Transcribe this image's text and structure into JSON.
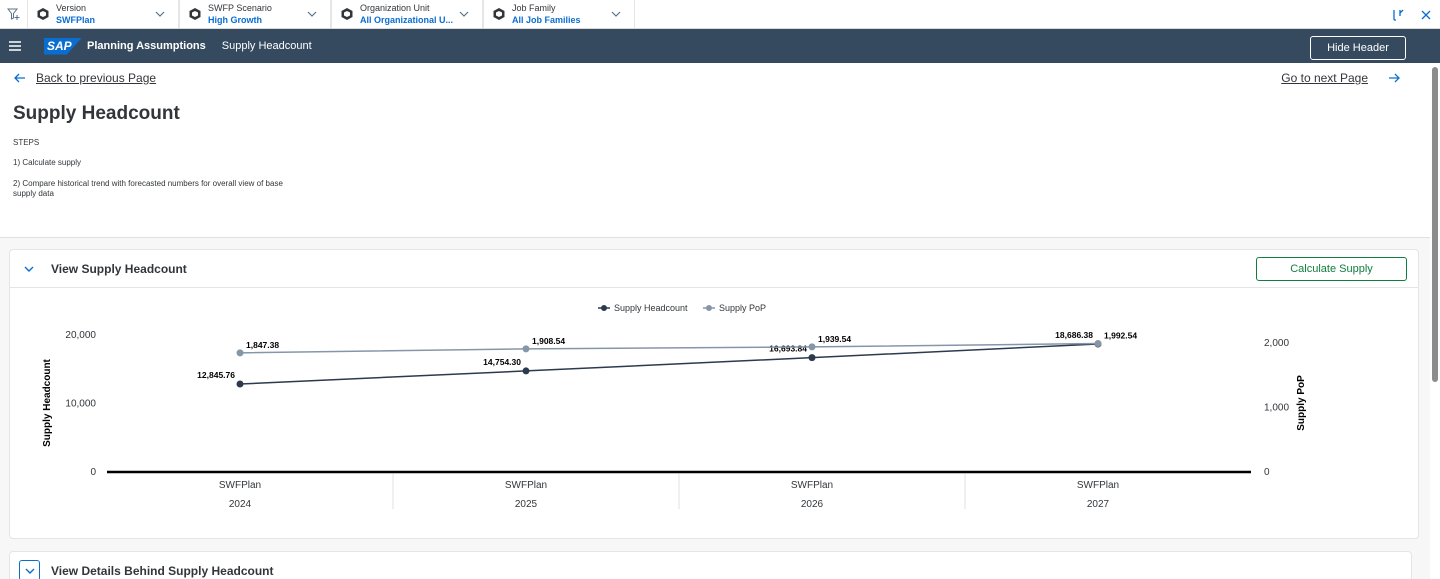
{
  "filters": [
    {
      "label": "Version",
      "value": "SWFPlan"
    },
    {
      "label": "SWFP Scenario",
      "value": "High Growth"
    },
    {
      "label": "Organization Unit",
      "value": "All Organizational U..."
    },
    {
      "label": "Job Family",
      "value": "All Job Families"
    }
  ],
  "shell": {
    "logo": "SAP",
    "app_title": "Planning Assumptions",
    "subtitle": "Supply Headcount",
    "hide_header_label": "Hide Header"
  },
  "nav": {
    "back_label": "Back to previous Page",
    "next_label": "Go to next Page"
  },
  "page": {
    "title": "Supply Headcount",
    "steps_heading": "STEPS",
    "step1": "1) Calculate supply",
    "step2": "2) Compare historical trend with forecasted numbers for overall view of base supply data"
  },
  "panel": {
    "title": "View Supply Headcount",
    "calc_button_label": "Calculate Supply"
  },
  "panel2": {
    "title": "View Details Behind Supply Headcount"
  },
  "chart_data": {
    "type": "line",
    "categories": [
      {
        "version": "SWFPlan",
        "year": "2024"
      },
      {
        "version": "SWFPlan",
        "year": "2025"
      },
      {
        "version": "SWFPlan",
        "year": "2026"
      },
      {
        "version": "SWFPlan",
        "year": "2027"
      }
    ],
    "series": [
      {
        "name": "Supply Headcount",
        "axis": "left",
        "color": "#2b3b4d",
        "values": [
          12845.76,
          14754.3,
          16693.84,
          18686.38
        ],
        "labels": [
          "12,845.76",
          "14,754.30",
          "16,693.84",
          "18,686.38"
        ]
      },
      {
        "name": "Supply PoP",
        "axis": "right",
        "color": "#8696a9",
        "values": [
          1847.38,
          1908.54,
          1939.54,
          1992.54
        ],
        "labels": [
          "1,847.38",
          "1,908.54",
          "1,939.54",
          "1,992.54"
        ]
      }
    ],
    "ylabel_left": "Supply Headcount",
    "ylabel_right": "Supply PoP",
    "yticks_left": [
      "0",
      "10,000",
      "20,000"
    ],
    "yticks_right": [
      "0",
      "1,000",
      "2,000"
    ],
    "ylim_left": [
      0,
      20000
    ],
    "ylim_right": [
      0,
      2000
    ],
    "legend_position": "top-center"
  },
  "colors": {
    "shell": "#354a5f",
    "accent": "#0a6ed1",
    "positive": "#107e3e"
  }
}
